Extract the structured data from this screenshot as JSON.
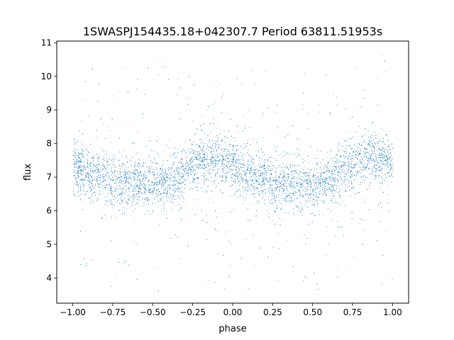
{
  "chart_data": {
    "type": "scatter",
    "title": "1SWASPJ154435.18+042307.7 Period 63811.51953s",
    "xlabel": "phase",
    "ylabel": "flux",
    "xlim": [
      -1.1,
      1.1
    ],
    "ylim": [
      3.25,
      11.05
    ],
    "xticks": [
      -1.0,
      -0.75,
      -0.5,
      -0.25,
      0.0,
      0.25,
      0.5,
      0.75,
      1.0
    ],
    "xtick_labels": [
      "−1.00",
      "−0.75",
      "−0.50",
      "−0.25",
      "0.00",
      "0.25",
      "0.50",
      "0.75",
      "1.00"
    ],
    "yticks": [
      4,
      5,
      6,
      7,
      8,
      9,
      10,
      11
    ],
    "ytick_labels": [
      "4",
      "5",
      "6",
      "7",
      "8",
      "9",
      "10",
      "11"
    ],
    "grid": false,
    "legend": "none",
    "marker_color": "#1f77b4",
    "phase_range": [
      -1.0,
      1.0
    ],
    "flux_range": [
      3.6,
      10.7
    ],
    "mean_flux_curve": {
      "phase": [
        -1.0,
        -0.9,
        -0.8,
        -0.7,
        -0.6,
        -0.5,
        -0.4,
        -0.3,
        -0.2,
        -0.15,
        -0.1,
        0.0,
        0.1,
        0.2,
        0.3,
        0.4,
        0.5,
        0.6,
        0.7,
        0.8,
        0.85,
        0.9,
        1.0
      ],
      "flux": [
        7.35,
        7.15,
        7.0,
        6.9,
        6.85,
        6.75,
        6.85,
        7.2,
        7.55,
        7.6,
        7.5,
        7.3,
        7.05,
        6.95,
        6.85,
        6.8,
        6.7,
        6.9,
        7.25,
        7.55,
        7.6,
        7.55,
        7.35
      ]
    },
    "scatter_std": 0.38
  }
}
